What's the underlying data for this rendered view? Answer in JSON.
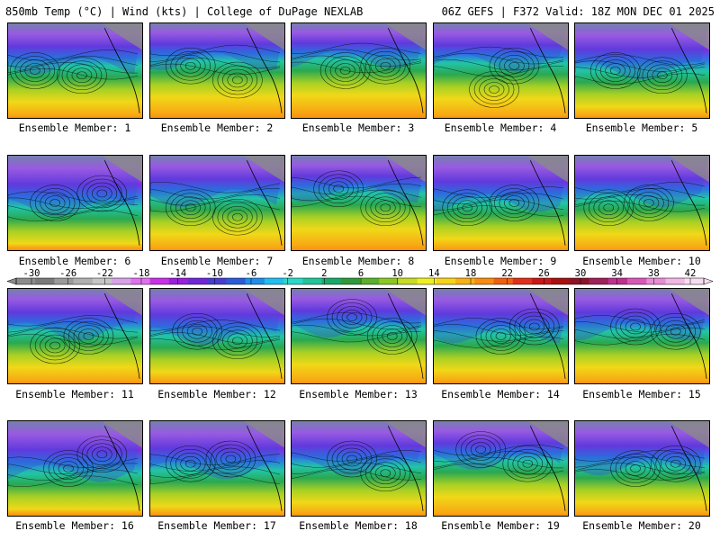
{
  "header": {
    "left": "850mb Temp (°C) | Wind (kts) | College of DuPage NEXLAB",
    "right": "06Z GEFS | F372 Valid: 18Z MON DEC 01 2025"
  },
  "members": [
    {
      "label": "Ensemble Member: 1",
      "cold": 0.45,
      "lows": [
        [
          0.55,
          0.55
        ],
        [
          0.2,
          0.5
        ]
      ]
    },
    {
      "label": "Ensemble Member: 2",
      "cold": 0.4,
      "lows": [
        [
          0.65,
          0.6
        ],
        [
          0.3,
          0.45
        ]
      ]
    },
    {
      "label": "Ensemble Member: 3",
      "cold": 0.38,
      "lows": [
        [
          0.4,
          0.5
        ],
        [
          0.7,
          0.45
        ]
      ]
    },
    {
      "label": "Ensemble Member: 4",
      "cold": 0.42,
      "lows": [
        [
          0.6,
          0.45
        ],
        [
          0.45,
          0.7
        ]
      ]
    },
    {
      "label": "Ensemble Member: 5",
      "cold": 0.5,
      "lows": [
        [
          0.65,
          0.55
        ],
        [
          0.3,
          0.5
        ]
      ]
    },
    {
      "label": "Ensemble Member: 6",
      "cold": 0.55,
      "lows": [
        [
          0.35,
          0.5
        ],
        [
          0.7,
          0.4
        ]
      ]
    },
    {
      "label": "Ensemble Member: 7",
      "cold": 0.45,
      "lows": [
        [
          0.65,
          0.65
        ],
        [
          0.3,
          0.55
        ]
      ]
    },
    {
      "label": "Ensemble Member: 8",
      "cold": 0.4,
      "lows": [
        [
          0.35,
          0.35
        ],
        [
          0.7,
          0.55
        ]
      ]
    },
    {
      "label": "Ensemble Member: 9",
      "cold": 0.5,
      "lows": [
        [
          0.6,
          0.5
        ],
        [
          0.25,
          0.55
        ]
      ]
    },
    {
      "label": "Ensemble Member: 10",
      "cold": 0.45,
      "lows": [
        [
          0.55,
          0.5
        ],
        [
          0.25,
          0.55
        ]
      ]
    },
    {
      "label": "Ensemble Member: 11",
      "cold": 0.45,
      "lows": [
        [
          0.35,
          0.6
        ],
        [
          0.6,
          0.5
        ]
      ]
    },
    {
      "label": "Ensemble Member: 12",
      "cold": 0.5,
      "lows": [
        [
          0.35,
          0.45
        ],
        [
          0.65,
          0.55
        ]
      ]
    },
    {
      "label": "Ensemble Member: 13",
      "cold": 0.42,
      "lows": [
        [
          0.45,
          0.3
        ],
        [
          0.75,
          0.5
        ]
      ]
    },
    {
      "label": "Ensemble Member: 14",
      "cold": 0.48,
      "lows": [
        [
          0.5,
          0.5
        ],
        [
          0.75,
          0.4
        ]
      ]
    },
    {
      "label": "Ensemble Member: 15",
      "cold": 0.45,
      "lows": [
        [
          0.45,
          0.4
        ],
        [
          0.75,
          0.45
        ]
      ]
    },
    {
      "label": "Ensemble Member: 16",
      "cold": 0.55,
      "lows": [
        [
          0.45,
          0.5
        ],
        [
          0.7,
          0.35
        ]
      ]
    },
    {
      "label": "Ensemble Member: 17",
      "cold": 0.52,
      "lows": [
        [
          0.3,
          0.45
        ],
        [
          0.6,
          0.4
        ]
      ]
    },
    {
      "label": "Ensemble Member: 18",
      "cold": 0.48,
      "lows": [
        [
          0.45,
          0.4
        ],
        [
          0.7,
          0.55
        ]
      ]
    },
    {
      "label": "Ensemble Member: 19",
      "cold": 0.42,
      "lows": [
        [
          0.35,
          0.3
        ],
        [
          0.7,
          0.45
        ]
      ]
    },
    {
      "label": "Ensemble Member: 20",
      "cold": 0.48,
      "lows": [
        [
          0.45,
          0.5
        ],
        [
          0.75,
          0.45
        ]
      ]
    }
  ],
  "colorbar": {
    "ticks": [
      "-30",
      "-26",
      "-22",
      "-18",
      "-14",
      "-10",
      "-6",
      "-2",
      "2",
      "6",
      "10",
      "14",
      "18",
      "22",
      "26",
      "30",
      "34",
      "38",
      "42"
    ],
    "colors": [
      "#8c8c8c",
      "#7a7a7a",
      "#9a9a9a",
      "#b0b0b0",
      "#c6c6c6",
      "#d8a2e8",
      "#e070ee",
      "#c830e8",
      "#9a20e0",
      "#6f28d8",
      "#4a3cd0",
      "#2a5cd8",
      "#1f8ee8",
      "#20bff0",
      "#2ad8c8",
      "#22c49a",
      "#1aa868",
      "#2e9a3c",
      "#5ab02a",
      "#8cc824",
      "#c8dc20",
      "#f0f020",
      "#f8d418",
      "#f8b014",
      "#f88c10",
      "#f06010",
      "#e0301a",
      "#c81818",
      "#a81010",
      "#8c1428",
      "#a0205a",
      "#c03090",
      "#d858b8",
      "#e88cd4",
      "#f0b8e4",
      "#f8dcf0"
    ]
  }
}
